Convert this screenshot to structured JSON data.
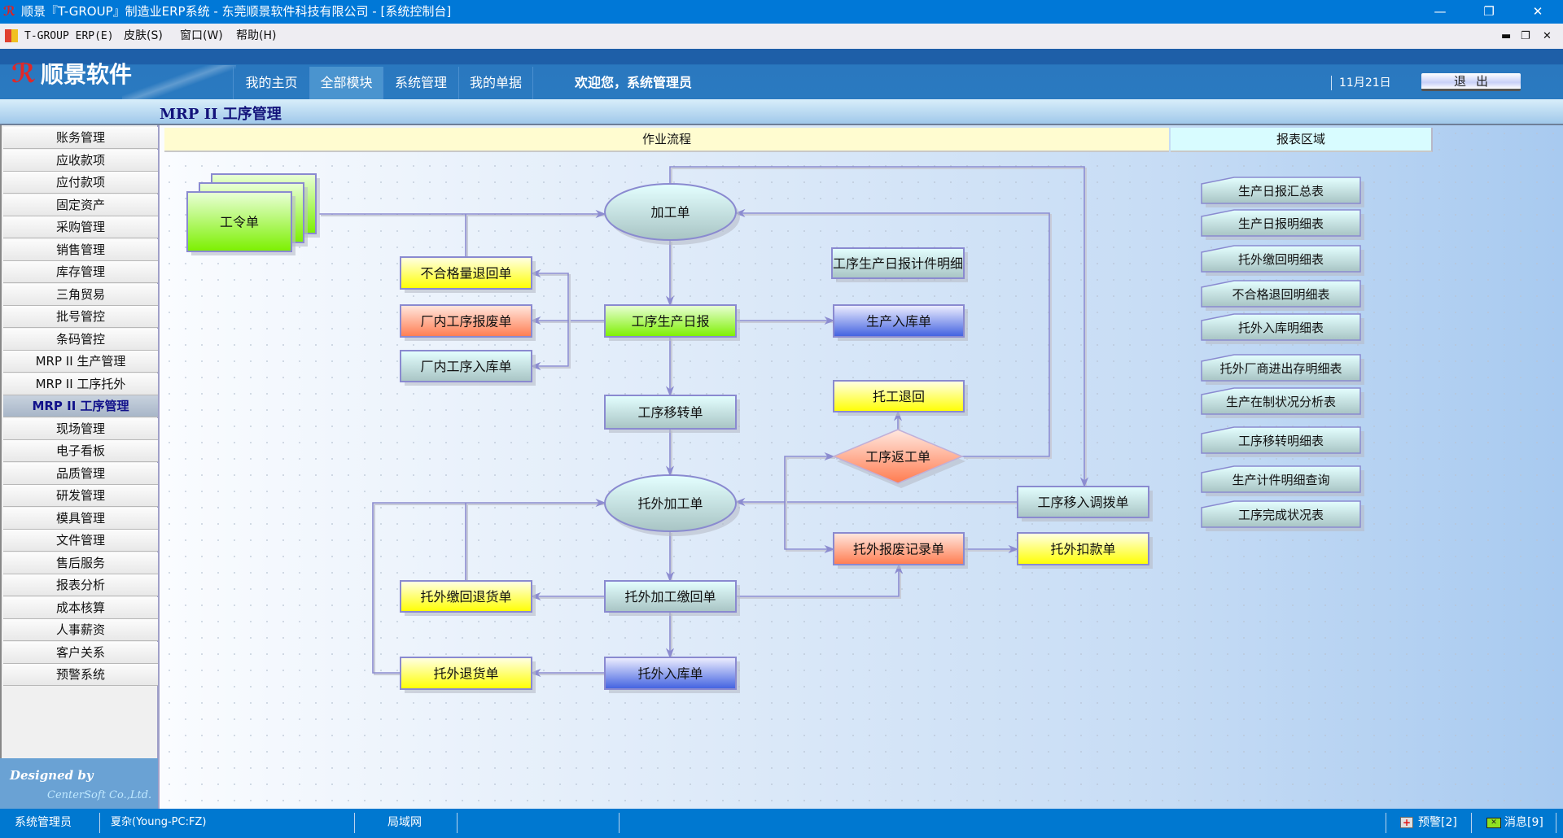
{
  "window": {
    "title": "顺景『T-GROUP』制造业ERP系统 - 东莞顺景软件科技有限公司 - [系统控制台]"
  },
  "menubar": {
    "items": [
      "T-GROUP ERP(E)",
      "皮肤(S)",
      "窗口(W)",
      "帮助(H)"
    ]
  },
  "header": {
    "brand": "顺景软件",
    "tabs": [
      "我的主页",
      "全部模块",
      "系统管理",
      "我的单据"
    ],
    "active_tab": "全部模块",
    "welcome": "欢迎您，系统管理员",
    "date": "11月21日",
    "logout": "退出"
  },
  "breadcrumb": "MRP II 工序管理",
  "sidebar": {
    "items": [
      "账务管理",
      "应收款项",
      "应付款项",
      "固定资产",
      "采购管理",
      "销售管理",
      "库存管理",
      "三角贸易",
      "批号管控",
      "条码管控",
      "MRP II 生产管理",
      "MRP II 工序托外",
      "MRP II 工序管理",
      "现场管理",
      "电子看板",
      "品质管理",
      "研发管理",
      "模具管理",
      "文件管理",
      "售后服务",
      "报表分析",
      "成本核算",
      "人事薪资",
      "客户关系",
      "预警系统"
    ],
    "active": "MRP II 工序管理",
    "designed_by": "Designed by",
    "company": "CenterSoft Co.,Ltd."
  },
  "main": {
    "flow_header": "作业流程",
    "report_header": "报表区域",
    "nodes": {
      "work_order": "工令单",
      "process_order": "加工单",
      "reject_return": "不合格量退回单",
      "internal_scrap": "厂内工序报废单",
      "internal_stockin": "厂内工序入库单",
      "daily_report": "工序生产日报",
      "daily_piece_detail": "工序生产日报计件明细",
      "production_stockin": "生产入库单",
      "outsource_return_back": "托工退回",
      "rework_order": "工序返工单",
      "transfer_order": "工序移转单",
      "outsource_order": "托外加工单",
      "transfer_in_order": "工序移入调拨单",
      "outsource_scrap": "托外报废记录单",
      "outsource_deduction": "托外扣款单",
      "outsource_return_goods_back": "托外缴回退货单",
      "outsource_receipt": "托外加工缴回单",
      "outsource_return_goods": "托外退货单",
      "outsource_stockin": "托外入库单"
    },
    "reports": [
      "生产日报汇总表",
      "生产日报明细表",
      "托外缴回明细表",
      "不合格退回明细表",
      "托外入库明细表",
      "托外厂商进出存明细表",
      "生产在制状况分析表",
      "工序移转明细表",
      "生产计件明细查询",
      "工序完成状况表"
    ]
  },
  "statusbar": {
    "user": "系统管理员",
    "host": "夏杂(Young-PC:FZ)",
    "network": "局域网",
    "alerts": "预警[2]",
    "messages": "消息[9]"
  },
  "colors": {
    "title_bar": "#0078d7",
    "header": "#2a78bf",
    "connector": "#8c8cd0",
    "green": "#7cf000",
    "yellow": "#ffff00",
    "red": "#ff7c50",
    "blue": "#4060e0",
    "teal": "#a8c4c4"
  }
}
